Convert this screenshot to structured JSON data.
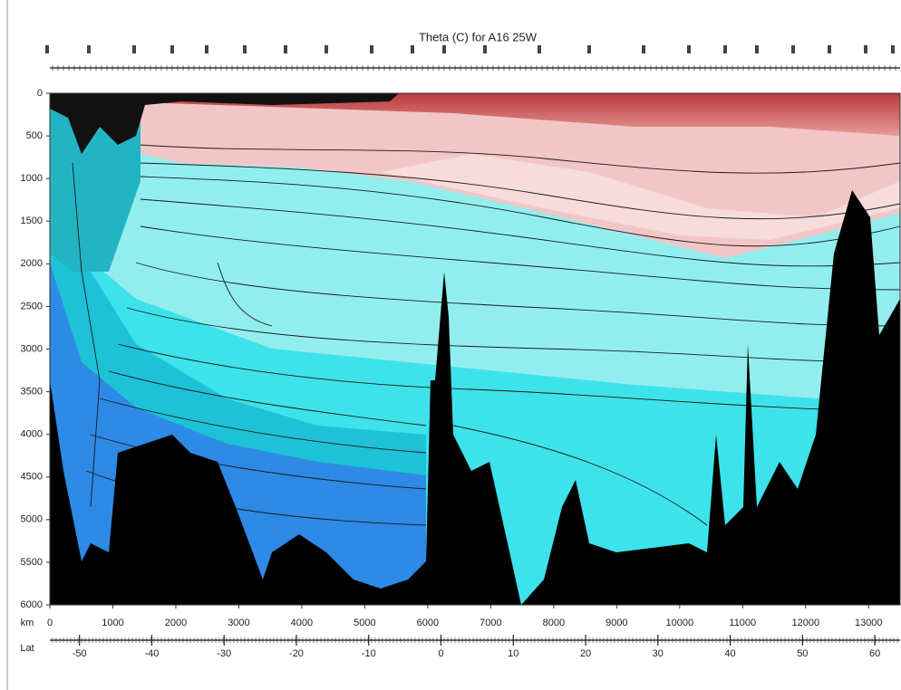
{
  "chart_data": {
    "type": "contour",
    "title": "Theta (C) for A16 25W",
    "x_label": "km",
    "x2_label": "Lat",
    "xlim": [
      0,
      13500
    ],
    "xticks": [
      0,
      1000,
      2000,
      3000,
      4000,
      5000,
      6000,
      7000,
      8000,
      9000,
      10000,
      11000,
      12000,
      13000
    ],
    "x2lim": [
      -54.1,
      63.5
    ],
    "x2ticks": [
      -50,
      -40,
      -30,
      -20,
      -10,
      0,
      10,
      20,
      30,
      40,
      50,
      60
    ],
    "ylim": [
      0,
      6000
    ],
    "y_inverted": true,
    "yticks": [
      0,
      500,
      1000,
      1500,
      2000,
      2500,
      3000,
      3500,
      4000,
      4500,
      5000,
      5500,
      6000
    ]
  }
}
